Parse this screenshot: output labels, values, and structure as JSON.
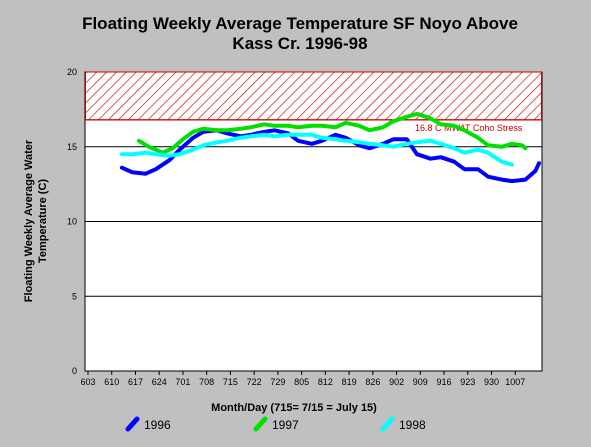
{
  "chart_data": {
    "type": "line",
    "title_line1": "Floating Weekly Average Temperature SF Noyo Above",
    "title_line2": "Kass Cr. 1996-98",
    "xlabel": "Month/Day (715= 7/15 = July 15)",
    "ylabel_line1": "Floating Weekly Average Water",
    "ylabel_line2": "Temperature (C)",
    "x_tick_labels": [
      "603",
      "610",
      "617",
      "624",
      "701",
      "708",
      "715",
      "722",
      "729",
      "805",
      "812",
      "819",
      "826",
      "902",
      "909",
      "916",
      "923",
      "930",
      "1007"
    ],
    "xlim_days": [
      0,
      133
    ],
    "ylim": [
      0,
      20
    ],
    "y_ticks": [
      0,
      5,
      10,
      15,
      20
    ],
    "grid": true,
    "threshold": {
      "value": 16.8,
      "label": "16.8 C MWAT Coho Stress",
      "color": "#cc0000"
    },
    "series": [
      {
        "name": "1996",
        "color": "#0000ff",
        "x": [
          10,
          13,
          17,
          20,
          24,
          27,
          31,
          34,
          38,
          41,
          45,
          48,
          52,
          55,
          59,
          62,
          66,
          69,
          73,
          76,
          80,
          83,
          87,
          90,
          94,
          97,
          101,
          104,
          108,
          111,
          115,
          118,
          122,
          125,
          129,
          132,
          133
        ],
        "y": [
          13.6,
          13.3,
          13.2,
          13.5,
          14.1,
          14.8,
          15.6,
          16.0,
          16.1,
          15.9,
          15.7,
          15.8,
          16.0,
          16.1,
          15.9,
          15.4,
          15.2,
          15.4,
          15.8,
          15.6,
          15.1,
          14.9,
          15.2,
          15.5,
          15.5,
          14.5,
          14.2,
          14.3,
          14.0,
          13.5,
          13.5,
          13.0,
          12.8,
          12.7,
          12.8,
          13.4,
          13.9
        ]
      },
      {
        "name": "1997",
        "color": "#00e000",
        "x": [
          15,
          18,
          22,
          25,
          28,
          31,
          34,
          38,
          41,
          45,
          48,
          52,
          55,
          59,
          62,
          66,
          69,
          73,
          76,
          80,
          83,
          87,
          90,
          94,
          97,
          101,
          104,
          108,
          111,
          115,
          118,
          122,
          125,
          128,
          129
        ],
        "y": [
          15.4,
          15.0,
          14.6,
          14.9,
          15.5,
          16.0,
          16.2,
          16.1,
          16.1,
          16.2,
          16.3,
          16.5,
          16.4,
          16.4,
          16.3,
          16.4,
          16.4,
          16.3,
          16.6,
          16.4,
          16.1,
          16.3,
          16.7,
          17.0,
          17.2,
          16.9,
          16.5,
          16.4,
          16.1,
          15.6,
          15.1,
          15.0,
          15.2,
          15.1,
          14.9
        ]
      },
      {
        "name": "1998",
        "color": "#00ffff",
        "x": [
          10,
          13,
          17,
          20,
          24,
          27,
          31,
          34,
          38,
          41,
          45,
          48,
          52,
          55,
          59,
          62,
          66,
          69,
          73,
          76,
          80,
          83,
          87,
          90,
          94,
          97,
          101,
          104,
          108,
          111,
          115,
          118,
          122,
          125
        ],
        "y": [
          14.5,
          14.5,
          14.6,
          14.5,
          14.4,
          14.5,
          14.8,
          15.1,
          15.3,
          15.4,
          15.6,
          15.7,
          15.8,
          15.7,
          15.8,
          15.8,
          15.8,
          15.6,
          15.5,
          15.4,
          15.3,
          15.2,
          15.1,
          15.0,
          15.2,
          15.3,
          15.4,
          15.2,
          14.9,
          14.6,
          14.8,
          14.6,
          14.0,
          13.8
        ]
      }
    ]
  }
}
